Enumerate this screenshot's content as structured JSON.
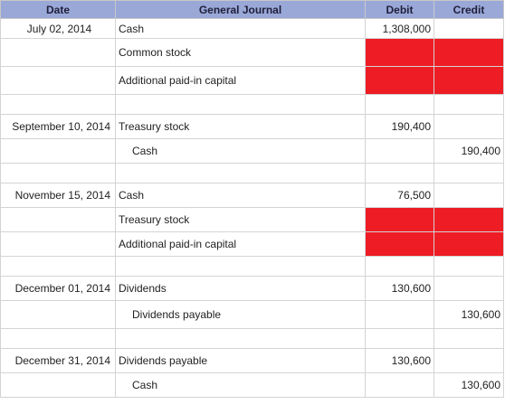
{
  "headers": {
    "date": "Date",
    "journal": "General Journal",
    "debit": "Debit",
    "credit": "Credit"
  },
  "colors": {
    "header_bg": "#9aa8d8",
    "highlight_red": "#ee1c24",
    "grid_line": "#d4d4d4"
  },
  "entries": [
    {
      "date": "July 02, 2014",
      "lines": [
        {
          "account": "Cash",
          "debit": "1,308,000",
          "credit": ""
        },
        {
          "account": "Common stock",
          "debit": "",
          "credit": "",
          "highlight": true
        },
        {
          "account": "Additional paid-in capital",
          "debit": "",
          "credit": "",
          "highlight": true
        }
      ]
    },
    {
      "date": "September 10, 2014",
      "lines": [
        {
          "account": "Treasury stock",
          "debit": "190,400",
          "credit": ""
        },
        {
          "account": "Cash",
          "debit": "",
          "credit": "190,400"
        }
      ]
    },
    {
      "date": "November 15, 2014",
      "lines": [
        {
          "account": "Cash",
          "debit": "76,500",
          "credit": ""
        },
        {
          "account": "Treasury stock",
          "debit": "",
          "credit": "",
          "highlight": true
        },
        {
          "account": "Additional paid-in capital",
          "debit": "",
          "credit": "",
          "highlight": true
        }
      ]
    },
    {
      "date": "December 01, 2014",
      "lines": [
        {
          "account": "Dividends",
          "debit": "130,600",
          "credit": ""
        },
        {
          "account": "Dividends payable",
          "debit": "",
          "credit": "130,600"
        }
      ]
    },
    {
      "date": "December 31, 2014",
      "lines": [
        {
          "account": "Dividends payable",
          "debit": "130,600",
          "credit": ""
        },
        {
          "account": "Cash",
          "debit": "",
          "credit": "130,600"
        }
      ]
    }
  ]
}
